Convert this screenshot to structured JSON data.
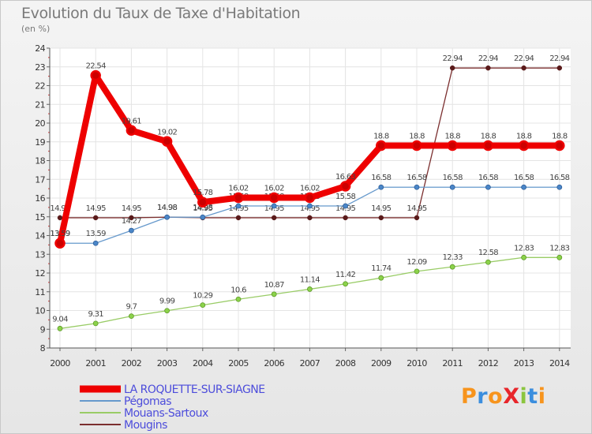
{
  "title": "Evolution du Taux de Taxe d'Habitation",
  "subtitle": "(en %)",
  "logo": {
    "text": "ProXiti",
    "colors": [
      "#f7941d",
      "#3b8ede",
      "#f7941d",
      "#e8262b",
      "#8bc53f",
      "#3b8ede",
      "#f7941d"
    ]
  },
  "chart_data": {
    "type": "line",
    "x": [
      2000,
      2001,
      2002,
      2003,
      2004,
      2005,
      2006,
      2007,
      2008,
      2009,
      2010,
      2011,
      2012,
      2013,
      2014
    ],
    "ylim": [
      8,
      24
    ],
    "yticks": [
      8,
      9,
      10,
      11,
      12,
      13,
      14,
      15,
      16,
      17,
      18,
      19,
      20,
      21,
      22,
      23,
      24
    ],
    "grid": true,
    "legend": "bottom-left",
    "series": [
      {
        "name": "Mougins",
        "color": "#7b2f2f",
        "values": [
          14.95,
          14.95,
          14.95,
          14.98,
          14.95,
          14.95,
          14.95,
          14.95,
          14.95,
          14.95,
          14.95,
          22.94,
          22.94,
          22.94,
          22.94
        ],
        "labels": [
          "14.95",
          "14.95",
          "14.95",
          "14.98",
          "14.95",
          "14.95",
          "14.95",
          "14.95",
          "14.95",
          "14.95",
          "14.95",
          "22.94",
          "22.94",
          "22.94",
          "22.94"
        ]
      },
      {
        "name": "Mouans-Sartoux",
        "color": "#99cc66",
        "values": [
          9.04,
          9.31,
          9.7,
          9.99,
          10.29,
          10.6,
          10.87,
          11.14,
          11.42,
          11.74,
          12.09,
          12.33,
          12.58,
          12.83,
          12.83
        ],
        "labels": [
          "9.04",
          "9.31",
          "9.7",
          "9.99",
          "10.29",
          "10.6",
          "10.87",
          "11.14",
          "11.42",
          "11.74",
          "12.09",
          "12.33",
          "12.58",
          "12.83",
          "12.83"
        ]
      },
      {
        "name": "Pégomas",
        "color": "#6699cc",
        "values": [
          13.59,
          13.59,
          14.27,
          14.98,
          14.98,
          15.58,
          15.58,
          15.58,
          15.58,
          16.58,
          16.58,
          16.58,
          16.58,
          16.58,
          16.58
        ],
        "labels": [
          "13.59",
          "13.59",
          "14.27",
          "14.98",
          "14.98",
          "15.58",
          "15.58",
          "15.58",
          "15.58",
          "16.58",
          "16.58",
          "16.58",
          "16.58",
          "16.58",
          "16.58"
        ]
      },
      {
        "name": "LA ROQUETTE-SUR-SIAGNE",
        "color": "#ee0000",
        "values": [
          13.59,
          22.54,
          19.61,
          19.02,
          15.78,
          16.02,
          16.02,
          16.02,
          16.63,
          18.8,
          18.8,
          18.8,
          18.8,
          18.8,
          18.8
        ],
        "labels": [
          "13.59",
          "22.54",
          "19.61",
          "19.02",
          "15.78",
          "16.02",
          "16.02",
          "16.02",
          "16.63",
          "18.8",
          "18.8",
          "18.8",
          "18.8",
          "18.8",
          "18.8"
        ]
      }
    ]
  }
}
